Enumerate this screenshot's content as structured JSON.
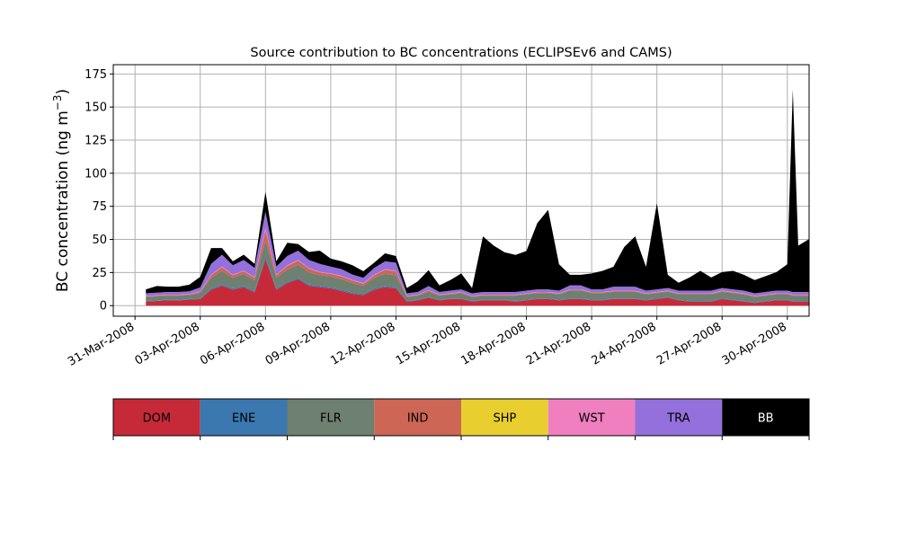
{
  "chart_data": {
    "type": "area",
    "title": "Source contribution to BC concentrations (ECLIPSEv6 and CAMS)",
    "xlabel": "",
    "ylabel": "BC concentration (ng m",
    "ylabel_sup": "−3",
    "ylabel_close": ")",
    "ylim": [
      -8,
      182
    ],
    "yticks": [
      0,
      25,
      50,
      75,
      100,
      125,
      150,
      175
    ],
    "grid": true,
    "xlim": [
      "2008-03-31",
      "2008-05-02"
    ],
    "xticks": [
      {
        "date": "2008-04-01",
        "label": "31-Mar-2008"
      },
      {
        "date": "2008-04-04",
        "label": "03-Apr-2008"
      },
      {
        "date": "2008-04-07",
        "label": "06-Apr-2008"
      },
      {
        "date": "2008-04-10",
        "label": "09-Apr-2008"
      },
      {
        "date": "2008-04-13",
        "label": "12-Apr-2008"
      },
      {
        "date": "2008-04-16",
        "label": "15-Apr-2008"
      },
      {
        "date": "2008-04-19",
        "label": "18-Apr-2008"
      },
      {
        "date": "2008-04-22",
        "label": "21-Apr-2008"
      },
      {
        "date": "2008-04-25",
        "label": "24-Apr-2008"
      },
      {
        "date": "2008-04-28",
        "label": "27-Apr-2008"
      },
      {
        "date": "2008-05-01",
        "label": "30-Apr-2008"
      }
    ],
    "legend_placement": "below",
    "x": [
      "2008-04-01T12:00",
      "2008-04-02T00:00",
      "2008-04-02T12:00",
      "2008-04-03T00:00",
      "2008-04-03T12:00",
      "2008-04-04T00:00",
      "2008-04-04T12:00",
      "2008-04-05T00:00",
      "2008-04-05T12:00",
      "2008-04-06T00:00",
      "2008-04-06T12:00",
      "2008-04-07T00:00",
      "2008-04-07T12:00",
      "2008-04-08T00:00",
      "2008-04-08T12:00",
      "2008-04-09T00:00",
      "2008-04-09T12:00",
      "2008-04-10T00:00",
      "2008-04-10T12:00",
      "2008-04-11T00:00",
      "2008-04-11T12:00",
      "2008-04-12T00:00",
      "2008-04-12T12:00",
      "2008-04-13T00:00",
      "2008-04-13T12:00",
      "2008-04-14T00:00",
      "2008-04-14T12:00",
      "2008-04-15T00:00",
      "2008-04-15T12:00",
      "2008-04-16T00:00",
      "2008-04-16T12:00",
      "2008-04-17T00:00",
      "2008-04-17T12:00",
      "2008-04-18T00:00",
      "2008-04-18T12:00",
      "2008-04-19T00:00",
      "2008-04-19T12:00",
      "2008-04-20T00:00",
      "2008-04-20T12:00",
      "2008-04-21T00:00",
      "2008-04-21T12:00",
      "2008-04-22T00:00",
      "2008-04-22T12:00",
      "2008-04-23T00:00",
      "2008-04-23T12:00",
      "2008-04-24T00:00",
      "2008-04-24T12:00",
      "2008-04-25T00:00",
      "2008-04-25T12:00",
      "2008-04-26T00:00",
      "2008-04-26T12:00",
      "2008-04-27T00:00",
      "2008-04-27T12:00",
      "2008-04-28T00:00",
      "2008-04-28T12:00",
      "2008-04-29T00:00",
      "2008-04-29T12:00",
      "2008-04-30T00:00",
      "2008-04-30T12:00",
      "2008-05-01T00:00",
      "2008-05-01T06:00",
      "2008-05-01T12:00",
      "2008-05-02T00:00"
    ],
    "series": [
      {
        "name": "DOM",
        "color": "#c62a39",
        "values": [
          3,
          3.5,
          4,
          4,
          4.5,
          5,
          12,
          15,
          12,
          14,
          10,
          35,
          12,
          17,
          20,
          15,
          14,
          13,
          11,
          9,
          8,
          12,
          14,
          13,
          3,
          4,
          6,
          4,
          5,
          5,
          3,
          4,
          4,
          4,
          3,
          4,
          5,
          5,
          4,
          5,
          5,
          4,
          4,
          5,
          5,
          5,
          4,
          5,
          6,
          4,
          3,
          3,
          3,
          5,
          4,
          3,
          2,
          3,
          4,
          4,
          3,
          3,
          3
        ]
      },
      {
        "name": "ENE",
        "color": "#3b78b0",
        "values": [
          0.5,
          0.5,
          0.5,
          0.5,
          0.5,
          0.5,
          1,
          1,
          1,
          1,
          1,
          2,
          1,
          1,
          1,
          1,
          1,
          1,
          1,
          1,
          1,
          1,
          1,
          1,
          0.5,
          0.5,
          0.5,
          0.5,
          0.5,
          0.5,
          0.5,
          0.5,
          0.5,
          0.5,
          0.5,
          0.5,
          0.5,
          0.5,
          0.5,
          0.5,
          0.5,
          0.5,
          0.5,
          0.5,
          0.5,
          0.5,
          0.5,
          0.5,
          0.5,
          0.5,
          0.5,
          0.5,
          0.5,
          0.5,
          0.5,
          0.5,
          0.5,
          0.5,
          0.5,
          0.5,
          0.5,
          0.5,
          0.5
        ]
      },
      {
        "name": "FLR",
        "color": "#6e8070",
        "values": [
          3,
          3,
          3,
          3,
          3,
          4,
          8,
          10,
          8,
          9,
          8,
          12,
          8,
          9,
          10,
          9,
          8,
          8,
          8,
          7,
          6,
          8,
          9,
          9,
          3,
          3,
          4,
          3,
          3,
          4,
          3,
          3,
          3,
          3,
          4,
          4,
          4,
          4,
          4,
          6,
          6,
          5,
          5,
          5,
          5,
          5,
          4,
          4,
          4,
          4,
          5,
          5,
          5,
          5,
          5,
          5,
          4,
          4,
          4,
          4,
          4,
          4,
          4
        ]
      },
      {
        "name": "IND",
        "color": "#cd6655",
        "values": [
          0.5,
          0.5,
          0.5,
          0.5,
          0.5,
          1,
          2,
          3,
          2,
          2,
          2,
          8,
          2,
          3,
          3,
          3,
          2,
          2,
          2,
          2,
          1.5,
          2,
          3,
          3,
          0.5,
          0.5,
          1,
          0.5,
          0.5,
          0.5,
          0.5,
          0.5,
          0.5,
          0.5,
          0.5,
          0.5,
          0.5,
          0.5,
          0.5,
          0.5,
          0.5,
          0.5,
          0.5,
          0.5,
          0.5,
          0.5,
          0.5,
          0.5,
          0.5,
          0.5,
          0.5,
          0.5,
          0.5,
          0.5,
          0.5,
          0.5,
          0.5,
          0.5,
          0.5,
          0.5,
          0.5,
          0.5,
          0.5
        ]
      },
      {
        "name": "SHP",
        "color": "#e8cf2f",
        "values": [
          0,
          0,
          0,
          0,
          0,
          0,
          0,
          0,
          0,
          0,
          0,
          0,
          0,
          0,
          0,
          0,
          0,
          0,
          0,
          0,
          0,
          0,
          0,
          0,
          0,
          0,
          0,
          0,
          0,
          0,
          0,
          0,
          0,
          0,
          0,
          0,
          0,
          0,
          0,
          0,
          0,
          0,
          0,
          0,
          0,
          0,
          0,
          0,
          0,
          0,
          0,
          0,
          0,
          0,
          0,
          0,
          0,
          0,
          0,
          0,
          0,
          0,
          0
        ]
      },
      {
        "name": "WST",
        "color": "#f07fbf",
        "values": [
          0.3,
          0.3,
          0.3,
          0.3,
          0.3,
          0.3,
          0.5,
          0.5,
          0.5,
          0.5,
          0.5,
          2,
          0.5,
          0.5,
          0.5,
          0.5,
          0.5,
          0.5,
          0.5,
          0.5,
          0.5,
          0.5,
          0.5,
          0.5,
          0.3,
          0.3,
          0.3,
          0.3,
          0.3,
          0.3,
          0.3,
          0.3,
          0.3,
          0.3,
          0.3,
          0.3,
          0.3,
          0.3,
          0.3,
          0.3,
          0.3,
          0.3,
          0.3,
          0.3,
          0.3,
          0.3,
          0.3,
          0.3,
          0.3,
          0.3,
          0.3,
          0.3,
          0.3,
          0.3,
          0.3,
          0.3,
          0.3,
          0.3,
          0.3,
          0.3,
          0.3,
          0.3,
          0.3
        ]
      },
      {
        "name": "TRA",
        "color": "#9370db",
        "values": [
          2,
          2,
          2,
          2,
          2,
          3,
          8,
          9,
          7,
          8,
          7,
          12,
          6,
          7,
          7,
          6,
          6,
          5,
          5,
          4,
          4,
          5,
          6,
          6,
          2,
          2,
          3,
          2,
          2,
          2,
          2,
          2,
          2,
          2,
          2,
          2,
          2,
          2,
          2,
          3,
          3,
          2,
          2,
          3,
          3,
          3,
          2,
          2,
          2,
          2,
          2,
          2,
          2,
          2,
          2,
          2,
          2,
          2,
          2,
          2,
          2,
          2,
          2
        ]
      },
      {
        "name": "BB",
        "color": "#000000",
        "values": [
          3,
          5,
          4,
          4,
          5,
          8,
          12,
          5,
          3,
          4,
          3,
          15,
          4,
          10,
          5,
          6,
          10,
          6,
          6,
          7,
          5,
          4,
          6,
          5,
          4,
          8,
          12,
          5,
          8,
          12,
          4,
          42,
          35,
          30,
          28,
          30,
          50,
          60,
          20,
          8,
          8,
          12,
          14,
          15,
          30,
          38,
          18,
          65,
          10,
          6,
          10,
          15,
          10,
          12,
          14,
          12,
          10,
          12,
          14,
          20,
          153,
          35,
          40
        ]
      }
    ]
  }
}
